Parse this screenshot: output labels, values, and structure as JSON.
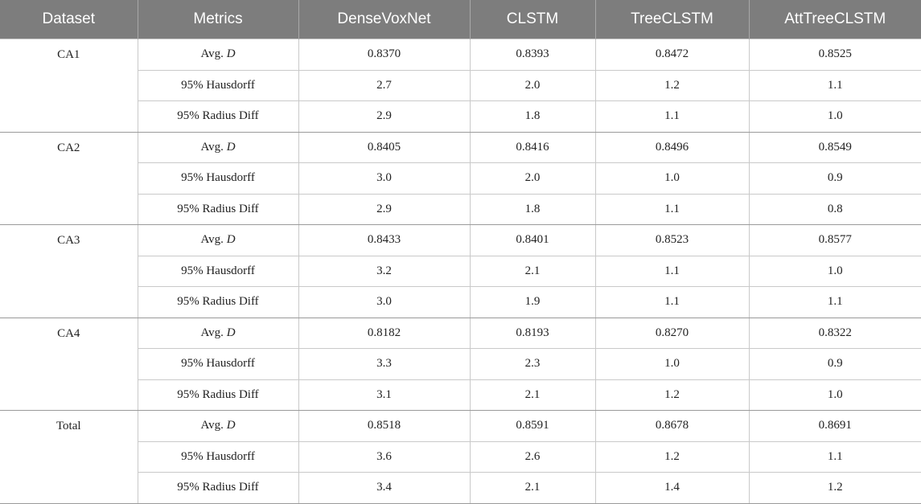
{
  "table": {
    "headers": [
      "Dataset",
      "Metrics",
      "DenseVoxNet",
      "CLSTM",
      "TreeCLSTM",
      "AttTreeCLSTM"
    ],
    "groups": [
      {
        "dataset": "CA1",
        "rows": [
          {
            "metric_prefix": "Avg. ",
            "metric_var": "D",
            "values": [
              "0.8370",
              "0.8393",
              "0.8472",
              "0.8525"
            ]
          },
          {
            "metric_prefix": "95% Hausdorff",
            "metric_var": "",
            "values": [
              "2.7",
              "2.0",
              "1.2",
              "1.1"
            ]
          },
          {
            "metric_prefix": "95% Radius Diff",
            "metric_var": "",
            "values": [
              "2.9",
              "1.8",
              "1.1",
              "1.0"
            ]
          }
        ]
      },
      {
        "dataset": "CA2",
        "rows": [
          {
            "metric_prefix": "Avg. ",
            "metric_var": "D",
            "values": [
              "0.8405",
              "0.8416",
              "0.8496",
              "0.8549"
            ]
          },
          {
            "metric_prefix": "95% Hausdorff",
            "metric_var": "",
            "values": [
              "3.0",
              "2.0",
              "1.0",
              "0.9"
            ]
          },
          {
            "metric_prefix": "95% Radius Diff",
            "metric_var": "",
            "values": [
              "2.9",
              "1.8",
              "1.1",
              "0.8"
            ]
          }
        ]
      },
      {
        "dataset": "CA3",
        "rows": [
          {
            "metric_prefix": "Avg. ",
            "metric_var": "D",
            "values": [
              "0.8433",
              "0.8401",
              "0.8523",
              "0.8577"
            ]
          },
          {
            "metric_prefix": "95% Hausdorff",
            "metric_var": "",
            "values": [
              "3.2",
              "2.1",
              "1.1",
              "1.0"
            ]
          },
          {
            "metric_prefix": "95% Radius Diff",
            "metric_var": "",
            "values": [
              "3.0",
              "1.9",
              "1.1",
              "1.1"
            ]
          }
        ]
      },
      {
        "dataset": "CA4",
        "rows": [
          {
            "metric_prefix": "Avg. ",
            "metric_var": "D",
            "values": [
              "0.8182",
              "0.8193",
              "0.8270",
              "0.8322"
            ]
          },
          {
            "metric_prefix": "95% Hausdorff",
            "metric_var": "",
            "values": [
              "3.3",
              "2.3",
              "1.0",
              "0.9"
            ]
          },
          {
            "metric_prefix": "95% Radius Diff",
            "metric_var": "",
            "values": [
              "3.1",
              "2.1",
              "1.2",
              "1.0"
            ]
          }
        ]
      },
      {
        "dataset": "Total",
        "rows": [
          {
            "metric_prefix": "Avg. ",
            "metric_var": "D",
            "values": [
              "0.8518",
              "0.8591",
              "0.8678",
              "0.8691"
            ]
          },
          {
            "metric_prefix": "95% Hausdorff",
            "metric_var": "",
            "values": [
              "3.6",
              "2.6",
              "1.2",
              "1.1"
            ]
          },
          {
            "metric_prefix": "95% Radius Diff",
            "metric_var": "",
            "values": [
              "3.4",
              "2.1",
              "1.4",
              "1.2"
            ]
          }
        ]
      }
    ]
  }
}
